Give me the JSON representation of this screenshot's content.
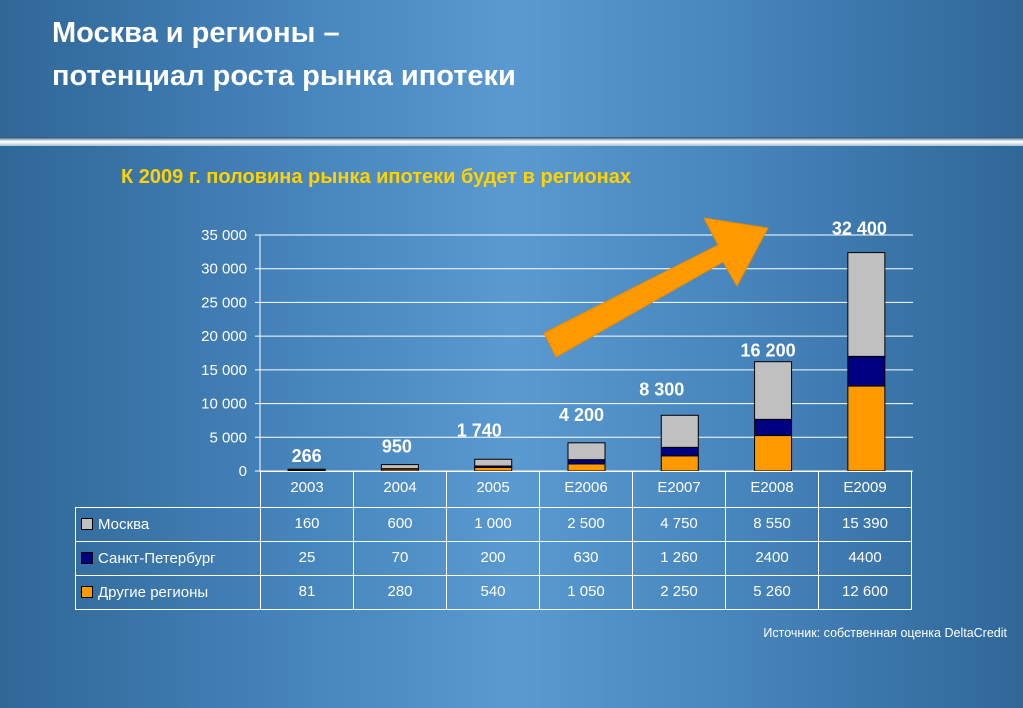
{
  "title": {
    "line1": "Москва и регионы –",
    "line2": "потенциал роста рынка ипотеки"
  },
  "subtitle": "К 2009 г. половина рынка ипотеки будет в регионах",
  "source": "Источник: собственная оценка DeltaCredit",
  "colors": {
    "moscow": "#c0c0c0",
    "spb": "#000080",
    "regions": "#ff9900",
    "arrow": "#ff9900",
    "total_label": "#ffffff"
  },
  "chart_data": {
    "type": "bar",
    "stacked": true,
    "categories": [
      "2003",
      "2004",
      "2005",
      "E2006",
      "E2007",
      "E2008",
      "E2009"
    ],
    "series": [
      {
        "name": "Москва",
        "color": "#c0c0c0",
        "values": [
          160,
          600,
          1000,
          2500,
          4750,
          8550,
          15390
        ]
      },
      {
        "name": "Санкт-Петербург",
        "color": "#000080",
        "values": [
          25,
          70,
          200,
          630,
          1260,
          2400,
          4400
        ]
      },
      {
        "name": "Другие регионы",
        "color": "#ff9900",
        "values": [
          81,
          280,
          540,
          1050,
          2250,
          5260,
          12600
        ]
      }
    ],
    "totals": [
      "266",
      "950",
      "1 740",
      "4 200",
      "8 300",
      "16 200",
      "32 400"
    ],
    "table_values": [
      [
        "160",
        "600",
        "1 000",
        "2 500",
        "4 750",
        "8 550",
        "15 390"
      ],
      [
        "25",
        "70",
        "200",
        "630",
        "1 260",
        "2400",
        "4400"
      ],
      [
        "81",
        "280",
        "540",
        "1 050",
        "2 250",
        "5 260",
        "12 600"
      ]
    ],
    "ylim": [
      0,
      35000
    ],
    "yticks": [
      "0",
      "5 000",
      "10 000",
      "15 000",
      "20 000",
      "25 000",
      "30 000",
      "35 000"
    ],
    "grid": true,
    "legend": "data-table"
  }
}
